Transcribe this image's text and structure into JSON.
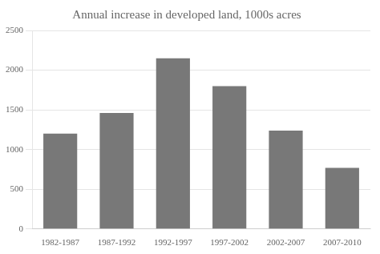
{
  "chart_data": {
    "type": "bar",
    "title": "Annual increase in developed land, 1000s acres",
    "categories": [
      "1982-1987",
      "1987-1992",
      "1992-1997",
      "1997-2002",
      "2002-2007",
      "2007-2010"
    ],
    "values": [
      1200,
      1460,
      2150,
      1800,
      1240,
      770
    ],
    "color": "#787878",
    "ylim": [
      0,
      2500
    ],
    "yticks": [
      0,
      500,
      1000,
      1500,
      2000,
      2500
    ],
    "grid": true
  }
}
